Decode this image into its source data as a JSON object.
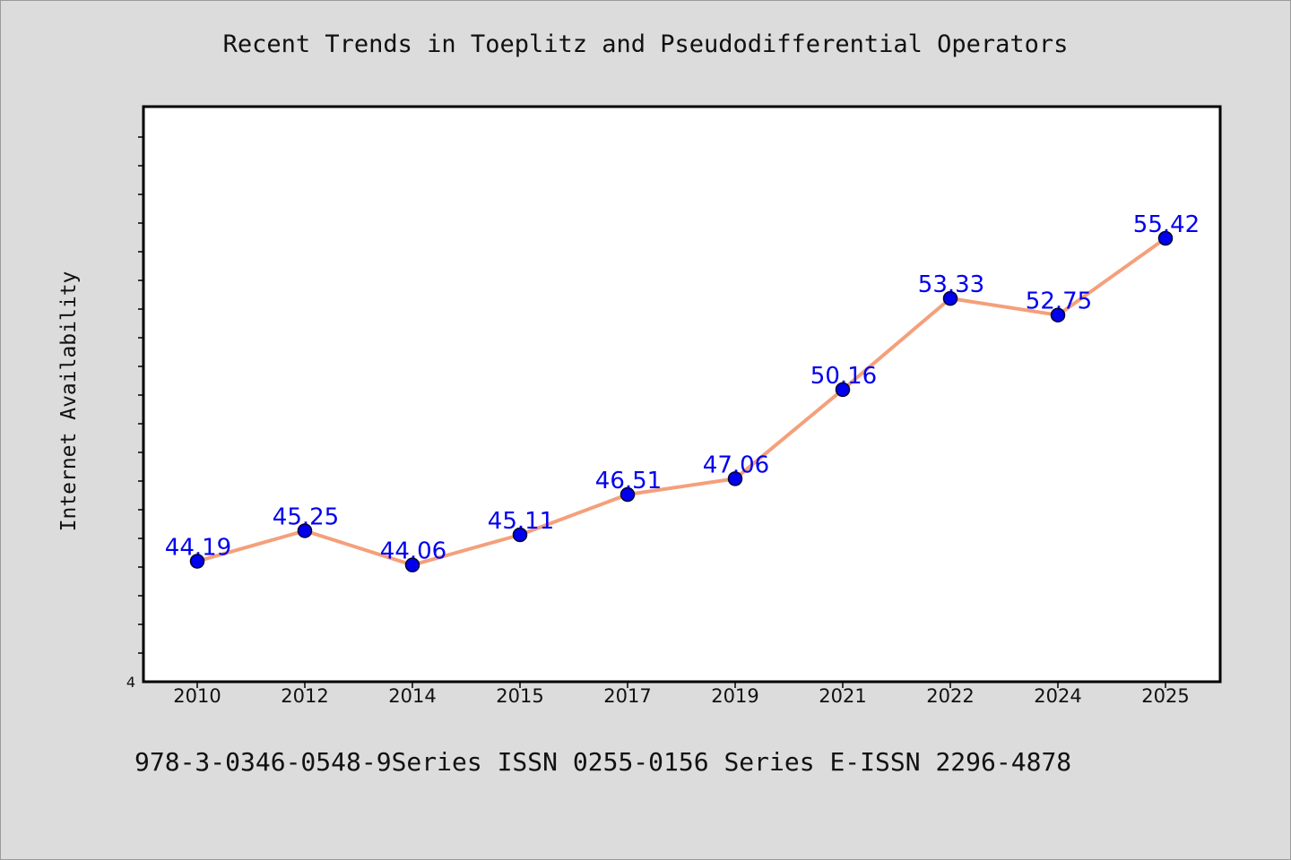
{
  "chart_data": {
    "type": "line",
    "title": "Recent Trends in Toeplitz and Pseudodifferential Operators",
    "xlabel": "",
    "ylabel": "Internet Availability",
    "categories": [
      "2010",
      "2012",
      "2014",
      "2015",
      "2017",
      "2019",
      "2021",
      "2022",
      "2024",
      "2025"
    ],
    "series": [
      {
        "values": [
          44.19,
          45.25,
          44.06,
          45.11,
          46.51,
          47.06,
          50.16,
          53.33,
          52.75,
          55.42
        ],
        "labels": [
          "44.19",
          "45.25",
          "44.06",
          "45.11",
          "46.51",
          "47.06",
          "50.16",
          "53.33",
          "52.75",
          "55.42"
        ]
      }
    ],
    "ylim": [
      40,
      60
    ],
    "yticks_labeled": [
      "4"
    ],
    "grid": false,
    "colors": {
      "line": "#f4a07a",
      "marker": "#0000ee",
      "label": "#0000ee"
    }
  },
  "footer": "978-3-0346-0548-9Series ISSN 0255-0156 Series E-ISSN 2296-4878"
}
